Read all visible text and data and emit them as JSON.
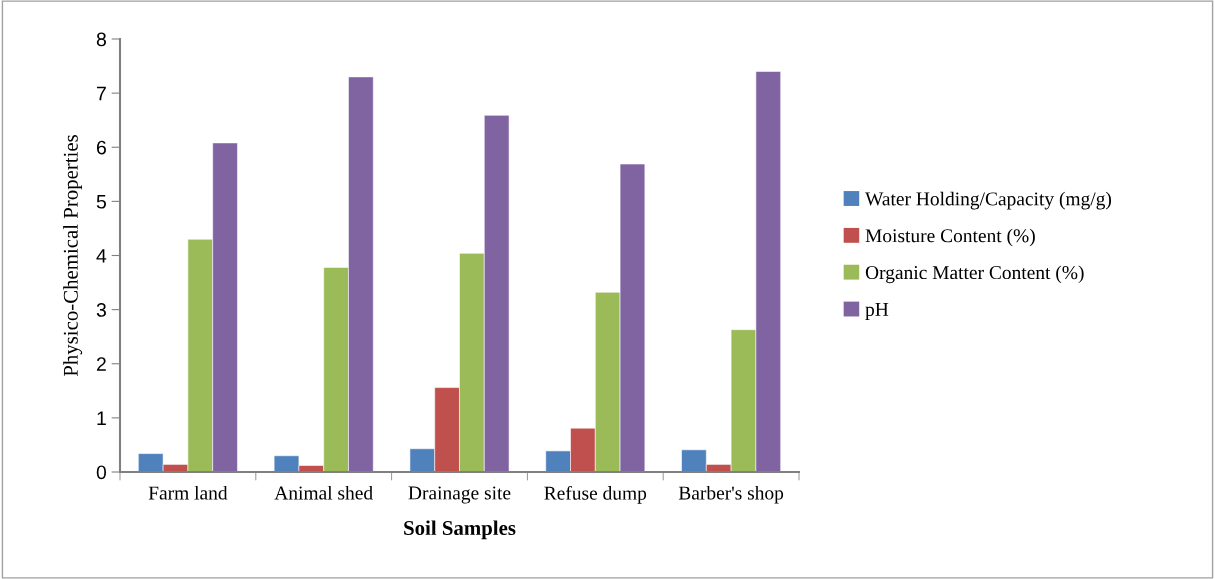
{
  "chart_data": {
    "type": "bar",
    "xlabel": "Soil Samples",
    "ylabel": "Physico-Chemical Properties",
    "categories": [
      "Farm land",
      "Animal shed",
      "Drainage site",
      "Refuse dump",
      "Barber's shop"
    ],
    "series": [
      {
        "name": "Water Holding/Capacity (mg/g)",
        "color": "#4f81bd",
        "values": [
          0.34,
          0.3,
          0.43,
          0.39,
          0.41
        ]
      },
      {
        "name": "Moisture Content (%)",
        "color": "#c0504d",
        "values": [
          0.14,
          0.12,
          1.56,
          0.81,
          0.14
        ]
      },
      {
        "name": "Organic Matter Content (%)",
        "color": "#9bbb59",
        "values": [
          4.3,
          3.78,
          4.04,
          3.32,
          2.63
        ]
      },
      {
        "name": "pH",
        "color": "#8064a2",
        "values": [
          6.08,
          7.3,
          6.59,
          5.69,
          7.4
        ]
      }
    ],
    "ylim": [
      0,
      8
    ],
    "yticks": [
      0,
      1,
      2,
      3,
      4,
      5,
      6,
      7,
      8
    ],
    "grid": false,
    "legend": "right"
  }
}
